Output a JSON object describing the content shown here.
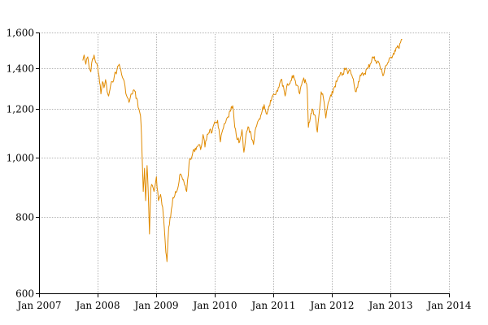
{
  "chart_data": {
    "type": "line",
    "title": "",
    "xlabel": "",
    "ylabel": "",
    "y_scale": "log",
    "ylim": [
      600,
      1600
    ],
    "xlim": [
      "2007-01-01",
      "2014-01-01"
    ],
    "grid": true,
    "colors": {
      "series": "#e08a00",
      "grid": "#b5b5b5",
      "axis": "#000000"
    },
    "y_ticks": [
      {
        "value": 600,
        "label": "600"
      },
      {
        "value": 800,
        "label": "800"
      },
      {
        "value": 1000,
        "label": "1,000"
      },
      {
        "value": 1200,
        "label": "1,200"
      },
      {
        "value": 1400,
        "label": "1,400"
      },
      {
        "value": 1600,
        "label": "1,600"
      }
    ],
    "x_ticks": [
      {
        "date": "2007-01-01",
        "label": "Jan 2007"
      },
      {
        "date": "2008-01-01",
        "label": "Jan 2008"
      },
      {
        "date": "2009-01-01",
        "label": "Jan 2009"
      },
      {
        "date": "2010-01-01",
        "label": "Jan 2010"
      },
      {
        "date": "2011-01-01",
        "label": "Jan 2011"
      },
      {
        "date": "2012-01-01",
        "label": "Jan 2012"
      },
      {
        "date": "2013-01-01",
        "label": "Jan 2013"
      },
      {
        "date": "2014-01-01",
        "label": "Jan 2014"
      }
    ],
    "series": [
      {
        "points": [
          [
            "2007-10-01",
            1440
          ],
          [
            "2007-10-09",
            1470
          ],
          [
            "2007-10-20",
            1420
          ],
          [
            "2007-11-01",
            1460
          ],
          [
            "2007-11-10",
            1400
          ],
          [
            "2007-11-20",
            1380
          ],
          [
            "2007-12-01",
            1450
          ],
          [
            "2007-12-10",
            1470
          ],
          [
            "2007-12-20",
            1430
          ],
          [
            "2008-01-01",
            1410
          ],
          [
            "2008-01-10",
            1360
          ],
          [
            "2008-01-22",
            1270
          ],
          [
            "2008-02-01",
            1330
          ],
          [
            "2008-02-10",
            1300
          ],
          [
            "2008-02-20",
            1340
          ],
          [
            "2008-03-01",
            1280
          ],
          [
            "2008-03-10",
            1260
          ],
          [
            "2008-03-18",
            1290
          ],
          [
            "2008-04-01",
            1330
          ],
          [
            "2008-04-15",
            1360
          ],
          [
            "2008-05-01",
            1390
          ],
          [
            "2008-05-15",
            1420
          ],
          [
            "2008-05-25",
            1390
          ],
          [
            "2008-06-05",
            1350
          ],
          [
            "2008-06-20",
            1310
          ],
          [
            "2008-07-01",
            1260
          ],
          [
            "2008-07-15",
            1230
          ],
          [
            "2008-08-01",
            1270
          ],
          [
            "2008-08-15",
            1290
          ],
          [
            "2008-09-01",
            1250
          ],
          [
            "2008-09-15",
            1200
          ],
          [
            "2008-09-25",
            1170
          ],
          [
            "2008-10-01",
            1090
          ],
          [
            "2008-10-08",
            950
          ],
          [
            "2008-10-12",
            880
          ],
          [
            "2008-10-20",
            960
          ],
          [
            "2008-10-27",
            850
          ],
          [
            "2008-11-05",
            970
          ],
          [
            "2008-11-12",
            880
          ],
          [
            "2008-11-20",
            750
          ],
          [
            "2008-11-28",
            890
          ],
          [
            "2008-12-08",
            900
          ],
          [
            "2008-12-18",
            880
          ],
          [
            "2009-01-02",
            930
          ],
          [
            "2009-01-15",
            850
          ],
          [
            "2009-01-28",
            870
          ],
          [
            "2009-02-10",
            830
          ],
          [
            "2009-02-20",
            770
          ],
          [
            "2009-03-02",
            700
          ],
          [
            "2009-03-09",
            676
          ],
          [
            "2009-03-20",
            770
          ],
          [
            "2009-04-01",
            800
          ],
          [
            "2009-04-15",
            860
          ],
          [
            "2009-05-01",
            880
          ],
          [
            "2009-05-15",
            890
          ],
          [
            "2009-06-01",
            940
          ],
          [
            "2009-06-15",
            920
          ],
          [
            "2009-07-01",
            900
          ],
          [
            "2009-07-10",
            880
          ],
          [
            "2009-07-25",
            980
          ],
          [
            "2009-08-10",
            1000
          ],
          [
            "2009-08-25",
            1030
          ],
          [
            "2009-09-10",
            1040
          ],
          [
            "2009-09-25",
            1050
          ],
          [
            "2009-10-05",
            1030
          ],
          [
            "2009-10-20",
            1090
          ],
          [
            "2009-11-01",
            1040
          ],
          [
            "2009-11-15",
            1090
          ],
          [
            "2009-12-01",
            1110
          ],
          [
            "2009-12-15",
            1100
          ],
          [
            "2010-01-05",
            1140
          ],
          [
            "2010-01-19",
            1150
          ],
          [
            "2010-02-05",
            1060
          ],
          [
            "2010-02-20",
            1110
          ],
          [
            "2010-03-10",
            1140
          ],
          [
            "2010-03-25",
            1165
          ],
          [
            "2010-04-10",
            1190
          ],
          [
            "2010-04-23",
            1215
          ],
          [
            "2010-05-06",
            1120
          ],
          [
            "2010-05-20",
            1070
          ],
          [
            "2010-06-05",
            1060
          ],
          [
            "2010-06-20",
            1110
          ],
          [
            "2010-07-02",
            1020
          ],
          [
            "2010-07-15",
            1090
          ],
          [
            "2010-08-01",
            1120
          ],
          [
            "2010-08-20",
            1070
          ],
          [
            "2010-08-31",
            1050
          ],
          [
            "2010-09-15",
            1120
          ],
          [
            "2010-10-01",
            1150
          ],
          [
            "2010-10-20",
            1180
          ],
          [
            "2010-11-05",
            1220
          ],
          [
            "2010-11-18",
            1180
          ],
          [
            "2010-12-01",
            1200
          ],
          [
            "2010-12-15",
            1240
          ],
          [
            "2011-01-03",
            1270
          ],
          [
            "2011-01-20",
            1280
          ],
          [
            "2011-02-10",
            1320
          ],
          [
            "2011-02-18",
            1340
          ],
          [
            "2011-03-05",
            1310
          ],
          [
            "2011-03-16",
            1260
          ],
          [
            "2011-03-30",
            1320
          ],
          [
            "2011-04-15",
            1320
          ],
          [
            "2011-04-29",
            1360
          ],
          [
            "2011-05-15",
            1340
          ],
          [
            "2011-06-01",
            1310
          ],
          [
            "2011-06-15",
            1270
          ],
          [
            "2011-07-01",
            1330
          ],
          [
            "2011-07-20",
            1340
          ],
          [
            "2011-08-01",
            1290
          ],
          [
            "2011-08-08",
            1120
          ],
          [
            "2011-08-20",
            1160
          ],
          [
            "2011-09-01",
            1200
          ],
          [
            "2011-09-20",
            1170
          ],
          [
            "2011-10-03",
            1100
          ],
          [
            "2011-10-20",
            1220
          ],
          [
            "2011-10-27",
            1280
          ],
          [
            "2011-11-10",
            1250
          ],
          [
            "2011-11-25",
            1160
          ],
          [
            "2011-12-10",
            1230
          ],
          [
            "2011-12-30",
            1260
          ],
          [
            "2012-01-15",
            1300
          ],
          [
            "2012-02-01",
            1330
          ],
          [
            "2012-02-20",
            1360
          ],
          [
            "2012-03-10",
            1370
          ],
          [
            "2012-03-30",
            1400
          ],
          [
            "2012-04-10",
            1370
          ],
          [
            "2012-04-25",
            1390
          ],
          [
            "2012-05-10",
            1350
          ],
          [
            "2012-06-01",
            1280
          ],
          [
            "2012-06-15",
            1330
          ],
          [
            "2012-07-01",
            1360
          ],
          [
            "2012-07-20",
            1370
          ],
          [
            "2012-08-15",
            1400
          ],
          [
            "2012-09-14",
            1460
          ],
          [
            "2012-10-01",
            1440
          ],
          [
            "2012-10-20",
            1430
          ],
          [
            "2012-11-15",
            1360
          ],
          [
            "2012-12-01",
            1410
          ],
          [
            "2012-12-20",
            1430
          ],
          [
            "2013-01-05",
            1460
          ],
          [
            "2013-01-20",
            1480
          ],
          [
            "2013-02-05",
            1510
          ],
          [
            "2013-02-20",
            1510
          ],
          [
            "2013-03-05",
            1540
          ],
          [
            "2013-03-15",
            1560
          ]
        ]
      }
    ]
  }
}
